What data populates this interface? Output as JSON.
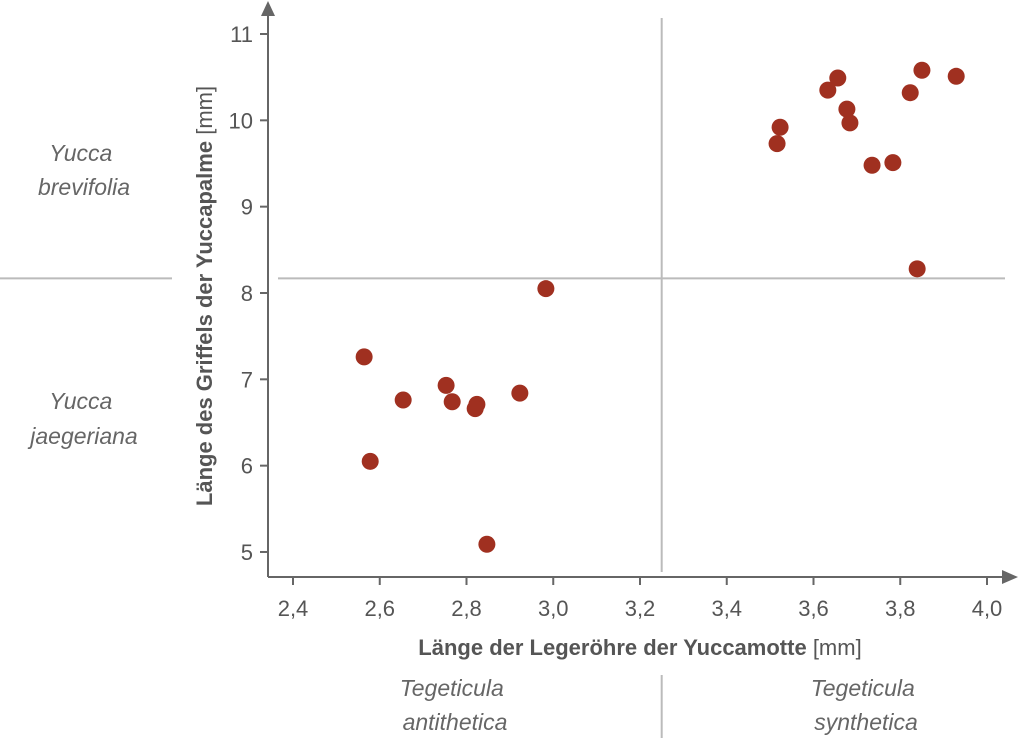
{
  "chart_data": {
    "type": "scatter",
    "xlabel_bold": "Länge der Legeröhre der Yuccamotte",
    "xlabel_unit": "[mm]",
    "ylabel_bold": "Länge des Griffels der Yuccapalme",
    "ylabel_unit": "[mm]",
    "xlim": [
      2.34,
      4.1
    ],
    "ylim": [
      4.75,
      11.3
    ],
    "x_ticks": [
      2.4,
      2.6,
      2.8,
      3.0,
      3.2,
      3.4,
      3.6,
      3.8,
      4.0
    ],
    "x_tick_labels": [
      "2,4",
      "2,6",
      "2,8",
      "3,0",
      "3,2",
      "3,4",
      "3,6",
      "3,8",
      "4,0"
    ],
    "y_ticks": [
      5,
      6,
      7,
      8,
      9,
      10,
      11
    ],
    "y_tick_labels": [
      "5",
      "6",
      "7",
      "8",
      "9",
      "10",
      "11"
    ],
    "grid": false,
    "divider_x": 3.25,
    "divider_y": 8.17,
    "group_labels": {
      "top_left": [
        "Yucca",
        "brevifolia"
      ],
      "bottom_left": [
        "Yucca",
        "jaegeriana"
      ],
      "bottom_x_left": [
        "Tegeticula",
        "antithetica"
      ],
      "bottom_x_right": [
        "Tegeticula",
        "synthetica"
      ]
    },
    "point_color": "#a03020",
    "points": [
      [
        3.516,
        9.73
      ],
      [
        3.523,
        9.92
      ],
      [
        3.633,
        10.35
      ],
      [
        3.656,
        10.49
      ],
      [
        3.677,
        10.13
      ],
      [
        3.684,
        9.97
      ],
      [
        3.735,
        9.48
      ],
      [
        3.783,
        9.51
      ],
      [
        3.823,
        10.32
      ],
      [
        3.85,
        10.58
      ],
      [
        3.929,
        10.51
      ],
      [
        3.839,
        8.28
      ],
      [
        2.564,
        7.26
      ],
      [
        2.578,
        6.05
      ],
      [
        2.654,
        6.76
      ],
      [
        2.753,
        6.93
      ],
      [
        2.767,
        6.74
      ],
      [
        2.824,
        6.71
      ],
      [
        2.82,
        6.66
      ],
      [
        2.847,
        5.09
      ],
      [
        2.923,
        6.84
      ],
      [
        2.983,
        8.05
      ]
    ]
  }
}
